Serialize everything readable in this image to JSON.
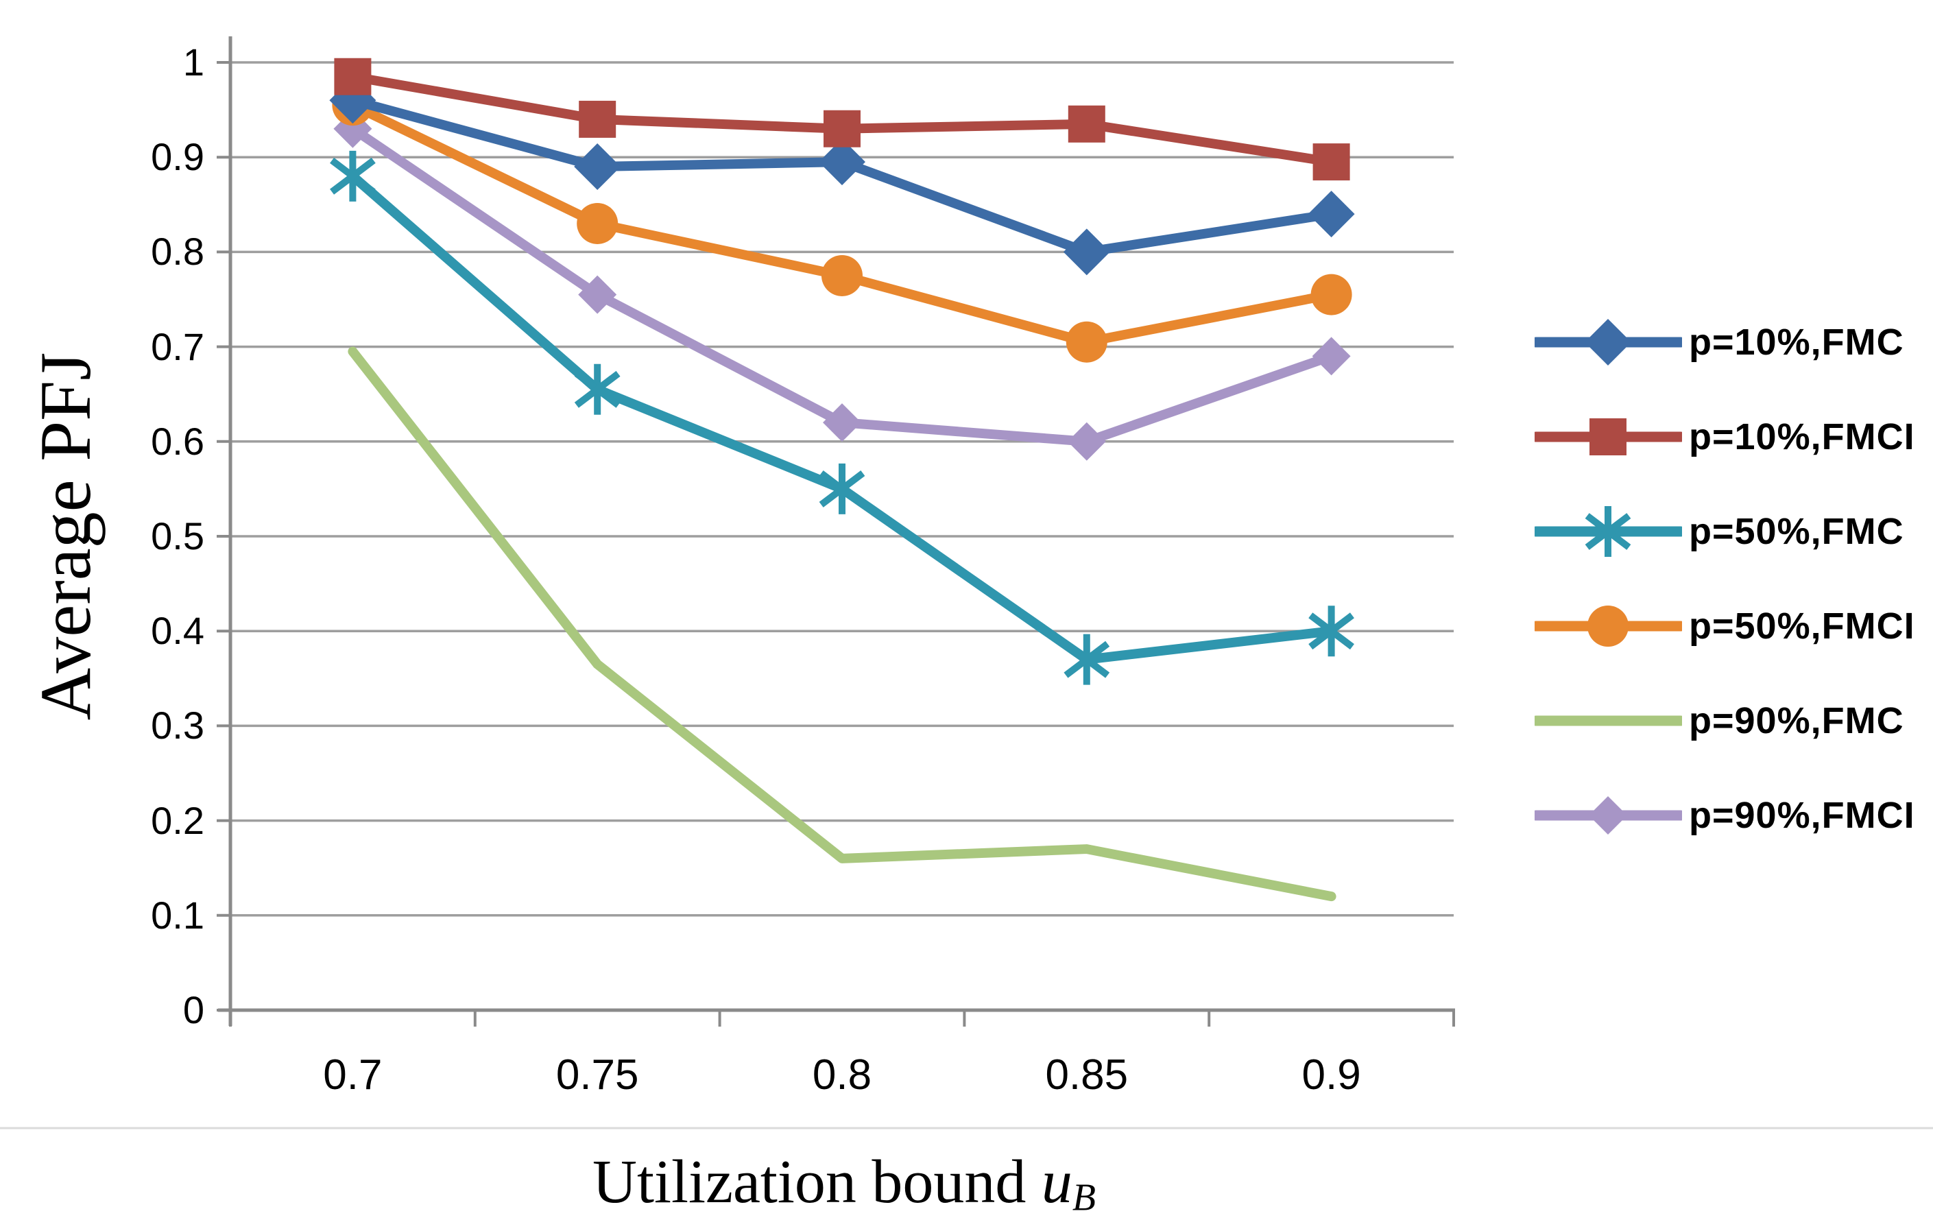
{
  "chart_data": {
    "type": "line",
    "title": "",
    "xlabel_main": "Utilization bound ",
    "xlabel_var": "u",
    "xlabel_sub": "B",
    "ylabel": "Average PFJ",
    "x": [
      0.7,
      0.75,
      0.8,
      0.85,
      0.9
    ],
    "x_tick_labels": [
      "0.7",
      "0.75",
      "0.8",
      "0.85",
      "0.9"
    ],
    "y_tick_labels": [
      "1",
      "0.9",
      "0.8",
      "0.7",
      "0.6",
      "0.5",
      "0.4",
      "0.3",
      "0.2",
      "0.1",
      "0"
    ],
    "ylim": [
      0,
      1
    ],
    "grid": "horizontal",
    "legend_position": "right",
    "series": [
      {
        "name": "p=10%,FMC",
        "marker": "diamond",
        "color": "#3D6CA6",
        "values": [
          0.96,
          0.89,
          0.895,
          0.8,
          0.84
        ]
      },
      {
        "name": "p=10%,FMCI",
        "marker": "square",
        "color": "#AD4A43",
        "values": [
          0.985,
          0.94,
          0.93,
          0.935,
          0.895
        ]
      },
      {
        "name": "p=50%,FMC",
        "marker": "asterisk",
        "color": "#2F96AE",
        "values": [
          0.88,
          0.655,
          0.55,
          0.37,
          0.4
        ]
      },
      {
        "name": "p=50%,FMCI",
        "marker": "circle",
        "color": "#E8872E",
        "values": [
          0.955,
          0.83,
          0.775,
          0.705,
          0.755
        ]
      },
      {
        "name": "p=90%,FMC",
        "marker": "none",
        "color": "#A9C77E",
        "values": [
          0.695,
          0.365,
          0.16,
          0.17,
          0.12
        ]
      },
      {
        "name": "p=90%,FMCI",
        "marker": "diamond",
        "color": "#A795C6",
        "values": [
          0.93,
          0.755,
          0.62,
          0.6,
          0.69
        ]
      }
    ],
    "colors": {
      "gridline": "#9E9E9E",
      "axis": "#8A8A8A",
      "faint_rule": "#DBDBDB",
      "text": "#000000"
    }
  }
}
